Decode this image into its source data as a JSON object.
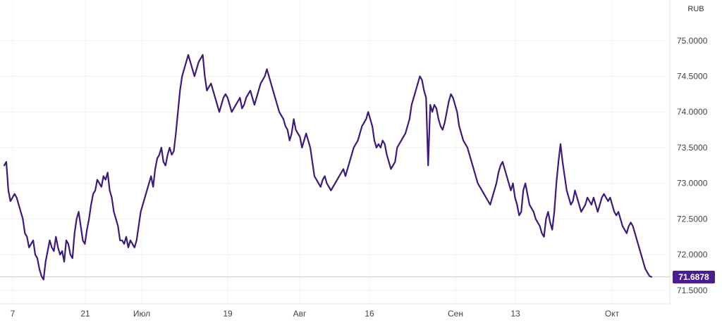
{
  "chart_data": {
    "type": "line",
    "currency_unit": "RUB",
    "current_value_label": "71.6878",
    "current_value": 71.6878,
    "line_color": "#3d1a78",
    "badge_color": "#4b1e8f",
    "ylim": [
      71.35,
      75.55
    ],
    "y_ticks": [
      "71.5000",
      "72.0000",
      "72.5000",
      "73.0000",
      "73.5000",
      "74.0000",
      "74.5000",
      "75.0000"
    ],
    "x_ticks": [
      "7",
      "21",
      "Июл",
      "19",
      "Авг",
      "16",
      "Сен",
      "13",
      "Окт"
    ],
    "grid": true,
    "series": [
      {
        "values": [
          73.25,
          73.3,
          72.9,
          72.75,
          72.8,
          72.85,
          72.8,
          72.7,
          72.6,
          72.5,
          72.3,
          72.25,
          72.1,
          72.15,
          72.2,
          72.0,
          71.95,
          71.8,
          71.7,
          71.65,
          71.9,
          72.05,
          72.2,
          72.1,
          72.05,
          72.25,
          72.1,
          72.0,
          72.05,
          71.9,
          72.2,
          72.15,
          72.0,
          71.95,
          72.3,
          72.5,
          72.6,
          72.4,
          72.2,
          72.15,
          72.35,
          72.5,
          72.7,
          72.85,
          72.9,
          73.05,
          73.0,
          72.95,
          73.1,
          73.05,
          73.15,
          72.9,
          72.8,
          72.6,
          72.5,
          72.4,
          72.2,
          72.2,
          72.15,
          72.25,
          72.1,
          72.2,
          72.15,
          72.1,
          72.2,
          72.4,
          72.6,
          72.7,
          72.8,
          72.9,
          73.0,
          73.1,
          72.95,
          73.2,
          73.35,
          73.4,
          73.5,
          73.3,
          73.25,
          73.4,
          73.5,
          73.4,
          73.45,
          73.7,
          74.0,
          74.3,
          74.5,
          74.6,
          74.7,
          74.8,
          74.7,
          74.6,
          74.5,
          74.6,
          74.7,
          74.75,
          74.8,
          74.5,
          74.3,
          74.35,
          74.4,
          74.3,
          74.2,
          74.1,
          74.0,
          74.1,
          74.2,
          74.25,
          74.2,
          74.1,
          74.0,
          74.05,
          74.1,
          74.15,
          74.2,
          74.05,
          74.1,
          74.2,
          74.25,
          74.3,
          74.2,
          74.1,
          74.2,
          74.3,
          74.4,
          74.45,
          74.5,
          74.6,
          74.5,
          74.4,
          74.3,
          74.2,
          74.1,
          74.0,
          73.95,
          73.9,
          73.8,
          73.75,
          73.6,
          73.7,
          73.9,
          73.75,
          73.7,
          73.65,
          73.5,
          73.6,
          73.7,
          73.6,
          73.5,
          73.3,
          73.1,
          73.05,
          73.0,
          72.95,
          73.05,
          73.1,
          73.0,
          72.95,
          72.9,
          72.95,
          73.0,
          73.05,
          73.1,
          73.15,
          73.2,
          73.1,
          73.2,
          73.3,
          73.4,
          73.5,
          73.55,
          73.6,
          73.7,
          73.8,
          73.85,
          73.9,
          74.0,
          73.9,
          73.8,
          73.6,
          73.5,
          73.55,
          73.5,
          73.6,
          73.55,
          73.4,
          73.3,
          73.2,
          73.25,
          73.3,
          73.5,
          73.55,
          73.6,
          73.65,
          73.7,
          73.8,
          73.9,
          74.1,
          74.2,
          74.3,
          74.4,
          74.5,
          74.45,
          74.3,
          74.2,
          73.25,
          74.1,
          74.0,
          74.1,
          74.05,
          73.9,
          73.8,
          73.75,
          73.85,
          74.0,
          74.15,
          74.25,
          74.2,
          74.1,
          74.0,
          73.8,
          73.7,
          73.6,
          73.55,
          73.5,
          73.4,
          73.3,
          73.2,
          73.1,
          73.0,
          72.95,
          72.9,
          72.85,
          72.8,
          72.75,
          72.7,
          72.8,
          72.9,
          73.0,
          73.15,
          73.25,
          73.3,
          73.2,
          73.1,
          73.0,
          72.9,
          73.0,
          72.8,
          72.7,
          72.55,
          72.6,
          72.9,
          73.0,
          72.85,
          72.7,
          72.65,
          72.6,
          72.5,
          72.45,
          72.4,
          72.3,
          72.25,
          72.5,
          72.6,
          72.45,
          72.35,
          72.6,
          73.0,
          73.3,
          73.55,
          73.3,
          73.1,
          72.9,
          72.8,
          72.7,
          72.75,
          72.9,
          72.8,
          72.7,
          72.6,
          72.65,
          72.7,
          72.8,
          72.75,
          72.7,
          72.8,
          72.7,
          72.6,
          72.7,
          72.8,
          72.85,
          72.8,
          72.75,
          72.8,
          72.7,
          72.6,
          72.55,
          72.6,
          72.5,
          72.4,
          72.35,
          72.3,
          72.4,
          72.45,
          72.4,
          72.3,
          72.2,
          72.1,
          72.0,
          71.9,
          71.8,
          71.75,
          71.7,
          71.6878
        ]
      }
    ]
  }
}
